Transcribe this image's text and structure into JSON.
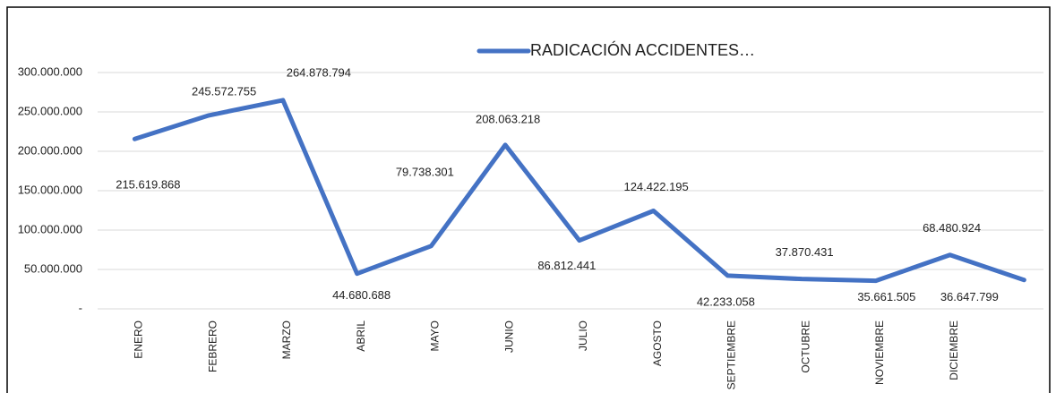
{
  "chart_data": {
    "type": "line",
    "categories": [
      "ENERO",
      "FEBRERO",
      "MARZO",
      "ABRIL",
      "MAYO",
      "JUNIO",
      "JULIO",
      "AGOSTO",
      "SEPTIEMBRE",
      "OCTUBRE",
      "NOVIEMBRE",
      "DICIEMBRE",
      null
    ],
    "series": [
      {
        "name": "RADICACIÓN ACCIDENTES…",
        "color": "#4472c4",
        "values": [
          215619868,
          245572755,
          264878794,
          44680688,
          79738301,
          208063218,
          86812441,
          124422195,
          42233058,
          37870431,
          35661505,
          68480924,
          36647799
        ],
        "value_labels": [
          "215.619.868",
          "245.572.755",
          "264.878.794",
          "44.680.688",
          "79.738.301",
          "208.063.218",
          "86.812.441",
          "124.422.195",
          "42.233.058",
          "37.870.431",
          "35.661.505",
          "68.480.924",
          "36.647.799"
        ]
      }
    ],
    "ylim": [
      0,
      300000000
    ],
    "yticks": [
      {
        "value": 0,
        "label": "-"
      },
      {
        "value": 50000000,
        "label": "50.000.000"
      },
      {
        "value": 100000000,
        "label": "100.000.000"
      },
      {
        "value": 150000000,
        "label": "150.000.000"
      },
      {
        "value": 200000000,
        "label": "200.000.000"
      },
      {
        "value": 250000000,
        "label": "250.000.000"
      },
      {
        "value": 300000000,
        "label": "300.000.000"
      }
    ],
    "grid": true,
    "legend": "top"
  }
}
